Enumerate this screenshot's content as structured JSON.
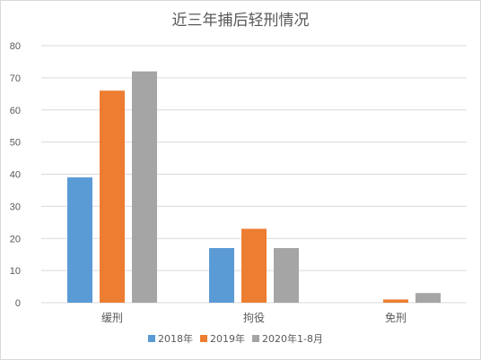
{
  "chart_data": {
    "type": "bar",
    "title": "近三年捕后轻刑情况",
    "categories": [
      "缓刑",
      "拘役",
      "免刑"
    ],
    "series": [
      {
        "name": "2018年",
        "values": [
          39,
          17,
          0
        ],
        "color": "#5b9bd5"
      },
      {
        "name": "2019年",
        "values": [
          66,
          23,
          1
        ],
        "color": "#ed7d31"
      },
      {
        "name": "2020年1-8月",
        "values": [
          72,
          17,
          3
        ],
        "color": "#a5a5a5"
      }
    ],
    "ylim": [
      0,
      80
    ],
    "yticks": [
      0,
      10,
      20,
      30,
      40,
      50,
      60,
      70,
      80
    ],
    "grid": true,
    "legend": "bottom",
    "xlabel": "",
    "ylabel": ""
  }
}
